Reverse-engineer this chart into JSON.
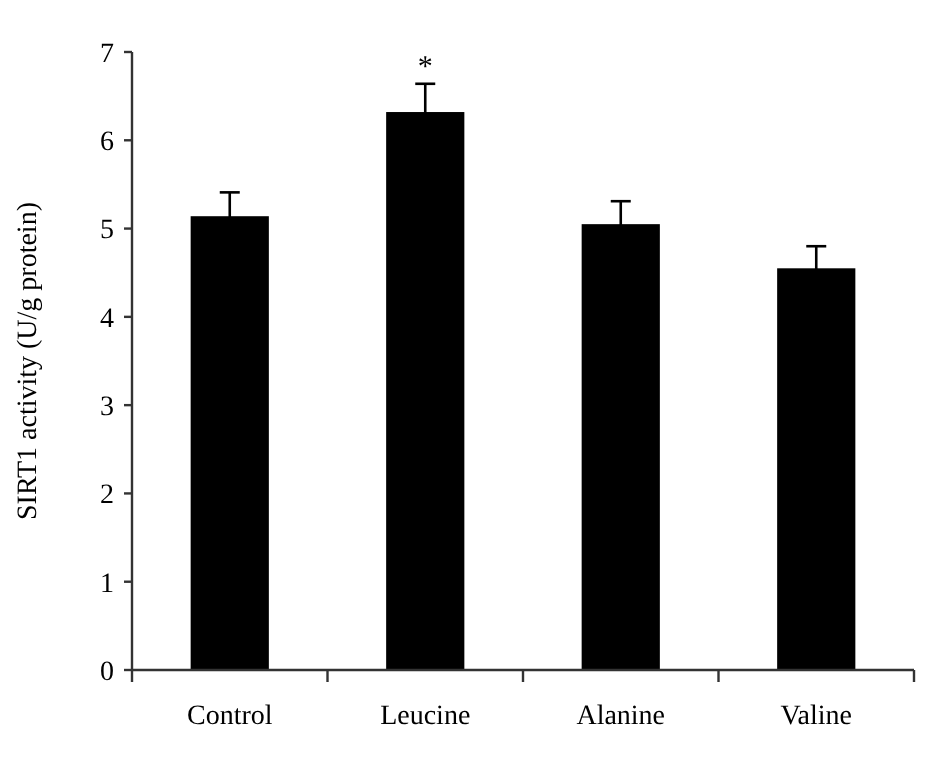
{
  "chart_data": {
    "type": "bar",
    "ylabel": "SIRT1 activity (U/g protein)",
    "categories": [
      "Control",
      "Leucine",
      "Alanine",
      "Valine"
    ],
    "values": [
      5.14,
      6.32,
      5.05,
      4.55
    ],
    "errors": [
      0.27,
      0.32,
      0.26,
      0.25
    ],
    "color": "#000000",
    "ylim": [
      0,
      7
    ],
    "yticks": [
      0,
      1,
      2,
      3,
      4,
      5,
      6,
      7
    ],
    "grid": false,
    "annotations": [
      "*"
    ]
  }
}
